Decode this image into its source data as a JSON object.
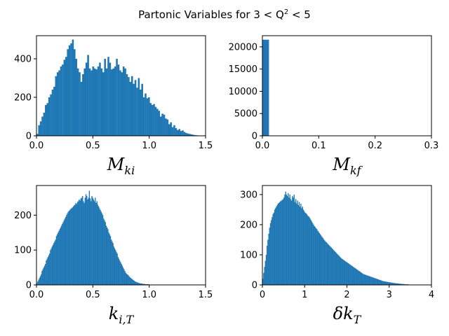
{
  "figure": {
    "title_prefix": "Partonic Variables for 3 < Q",
    "title_sup": "2",
    "title_suffix": " < 5"
  },
  "chart_data": [
    {
      "type": "bar",
      "id": "mki",
      "xlabel_main": "M",
      "xlabel_sub": "ki",
      "xlim": [
        0,
        1.5
      ],
      "ylim": [
        0,
        520
      ],
      "xticks": [
        0.0,
        0.5,
        1.0,
        1.5
      ],
      "xtick_labels": [
        "0.0",
        "0.5",
        "1.0",
        "1.5"
      ],
      "yticks": [
        0,
        200,
        400
      ],
      "ytick_labels": [
        "0",
        "200",
        "400"
      ],
      "bin_width": 0.015,
      "bin_start": 0.0,
      "values": [
        10,
        55,
        75,
        100,
        120,
        160,
        170,
        200,
        215,
        240,
        255,
        310,
        330,
        340,
        360,
        370,
        395,
        410,
        450,
        470,
        480,
        500,
        450,
        400,
        350,
        330,
        280,
        320,
        350,
        380,
        420,
        350,
        340,
        360,
        350,
        345,
        360,
        380,
        350,
        330,
        400,
        350,
        410,
        380,
        345,
        350,
        360,
        400,
        370,
        340,
        330,
        360,
        350,
        320,
        305,
        280,
        310,
        270,
        290,
        250,
        300,
        240,
        270,
        200,
        220,
        195,
        200,
        170,
        160,
        165,
        150,
        140,
        130,
        100,
        115,
        110,
        90,
        85,
        60,
        70,
        45,
        55,
        40,
        30,
        35,
        25,
        28,
        20,
        15,
        12,
        10,
        8,
        6,
        4,
        3,
        2,
        1,
        1,
        0,
        0
      ]
    },
    {
      "type": "bar",
      "id": "mkf",
      "xlabel_main": "M",
      "xlabel_sub": "kf",
      "xlim": [
        0,
        0.3
      ],
      "ylim": [
        0,
        22500
      ],
      "xticks": [
        0.0,
        0.1,
        0.2,
        0.3
      ],
      "xtick_labels": [
        "0.0",
        "0.1",
        "0.2",
        "0.3"
      ],
      "yticks": [
        0,
        5000,
        10000,
        15000,
        20000
      ],
      "ytick_labels": [
        "0",
        "5000",
        "10000",
        "15000",
        "20000"
      ],
      "bin_width": 0.0115,
      "bin_start": 0.0,
      "values": [
        21600
      ]
    },
    {
      "type": "bar",
      "id": "kit",
      "xlabel_main": "k",
      "xlabel_sub": "i,T",
      "xlim": [
        0,
        1.5
      ],
      "ylim": [
        0,
        285
      ],
      "xticks": [
        0.0,
        0.5,
        1.0,
        1.5
      ],
      "xtick_labels": [
        "0.0",
        "0.5",
        "1.0",
        "1.5"
      ],
      "yticks": [
        0,
        100,
        200
      ],
      "ytick_labels": [
        "0",
        "100",
        "200"
      ],
      "bin_width": 0.0075,
      "bin_start": 0.0,
      "values": [
        5,
        10,
        15,
        20,
        25,
        30,
        40,
        45,
        50,
        55,
        60,
        70,
        75,
        80,
        85,
        90,
        100,
        105,
        110,
        115,
        120,
        125,
        130,
        140,
        145,
        150,
        155,
        160,
        165,
        170,
        175,
        180,
        185,
        190,
        195,
        200,
        205,
        210,
        212,
        215,
        218,
        220,
        222,
        225,
        228,
        230,
        235,
        232,
        238,
        240,
        245,
        242,
        248,
        250,
        255,
        240,
        235,
        250,
        260,
        255,
        245,
        250,
        270,
        248,
        240,
        255,
        250,
        245,
        240,
        250,
        235,
        240,
        230,
        225,
        220,
        215,
        210,
        205,
        200,
        190,
        185,
        180,
        170,
        165,
        160,
        150,
        145,
        140,
        130,
        125,
        120,
        110,
        105,
        100,
        95,
        90,
        80,
        75,
        70,
        65,
        60,
        55,
        50,
        45,
        40,
        35,
        32,
        30,
        28,
        25,
        22,
        20,
        18,
        16,
        14,
        12,
        10,
        9,
        8,
        7,
        6,
        5,
        5,
        4,
        4,
        3,
        3,
        3,
        2,
        2,
        2,
        2,
        2,
        1,
        1,
        1,
        1,
        1,
        1,
        1,
        1,
        1,
        1,
        1,
        1,
        1,
        1,
        1,
        1,
        1,
        1,
        1,
        1,
        1,
        1,
        1,
        1,
        1,
        1,
        1,
        1,
        1,
        1,
        1,
        1,
        1,
        1,
        1,
        1,
        1,
        0,
        0,
        0,
        0,
        0,
        0,
        0,
        0,
        0,
        0,
        0,
        0,
        0,
        0,
        0,
        0,
        0,
        0,
        0,
        0,
        0,
        0,
        0,
        0,
        0,
        0,
        0,
        0,
        0,
        0
      ]
    },
    {
      "type": "bar",
      "id": "dkt",
      "xlabel_main": "δk",
      "xlabel_sub": "T",
      "xlim": [
        0,
        4
      ],
      "ylim": [
        0,
        330
      ],
      "xticks": [
        0,
        1,
        2,
        3,
        4
      ],
      "xtick_labels": [
        "0",
        "1",
        "2",
        "3",
        "4"
      ],
      "yticks": [
        0,
        100,
        200,
        300
      ],
      "ytick_labels": [
        "0",
        "100",
        "200",
        "300"
      ],
      "bin_width": 0.02,
      "bin_start": 0.0,
      "values": [
        20,
        40,
        60,
        80,
        100,
        130,
        150,
        170,
        190,
        205,
        215,
        225,
        235,
        240,
        250,
        255,
        260,
        265,
        270,
        272,
        275,
        278,
        280,
        282,
        285,
        290,
        300,
        310,
        300,
        295,
        305,
        290,
        300,
        285,
        280,
        295,
        290,
        300,
        275,
        285,
        270,
        280,
        265,
        275,
        260,
        270,
        255,
        260,
        250,
        245,
        240,
        238,
        235,
        230,
        228,
        225,
        220,
        215,
        210,
        205,
        200,
        195,
        192,
        188,
        185,
        180,
        176,
        172,
        168,
        164,
        160,
        156,
        152,
        148,
        145,
        142,
        139,
        136,
        133,
        130,
        127,
        124,
        121,
        118,
        115,
        112,
        109,
        106,
        103,
        100,
        97,
        94,
        91,
        88,
        86,
        84,
        82,
        80,
        78,
        76,
        74,
        72,
        70,
        68,
        66,
        64,
        62,
        60,
        58,
        56,
        54,
        52,
        50,
        48,
        46,
        44,
        42,
        40,
        38,
        36,
        35,
        34,
        33,
        32,
        31,
        30,
        29,
        28,
        27,
        26,
        25,
        24,
        23,
        22,
        21,
        20,
        19,
        18,
        17,
        16,
        15,
        14,
        13,
        12,
        12,
        11,
        11,
        10,
        10,
        9,
        9,
        8,
        8,
        7,
        7,
        6,
        6,
        6,
        5,
        5,
        5,
        4,
        4,
        4,
        3,
        3,
        3,
        3,
        2,
        2,
        2,
        2,
        2,
        1,
        1,
        1,
        1,
        1,
        1,
        1,
        1,
        1,
        1,
        1,
        1,
        1,
        1,
        1,
        1,
        1,
        1,
        1,
        1,
        1,
        1,
        1,
        1,
        1,
        1,
        1
      ]
    }
  ]
}
